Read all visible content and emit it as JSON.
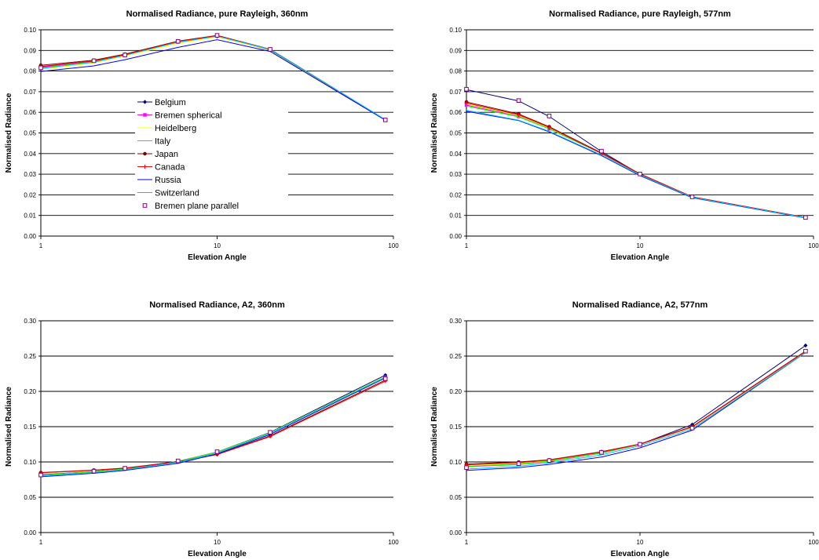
{
  "chart_data": [
    {
      "type": "line",
      "title": "Normalised Radiance, pure Rayleigh, 360nm",
      "xlabel": "Elevation Angle",
      "ylabel": "Normalised Radiance",
      "xscale": "log",
      "xlim": [
        1,
        100
      ],
      "ylim": [
        0,
        0.1
      ],
      "xticks": [
        "1",
        "10",
        "100"
      ],
      "yticks": [
        "0.00",
        "0.01",
        "0.02",
        "0.03",
        "0.04",
        "0.05",
        "0.06",
        "0.07",
        "0.08",
        "0.09",
        "0.10"
      ],
      "grid": "horizontal",
      "legend": "center-left",
      "x": [
        1,
        2,
        3,
        6,
        10,
        20,
        90
      ],
      "series": [
        {
          "name": "Belgium",
          "values": [
            0.082,
            0.0848,
            0.0878,
            0.094,
            0.0968,
            0.0902,
            0.0563
          ]
        },
        {
          "name": "Bremen spherical",
          "values": [
            0.0818,
            0.0849,
            0.088,
            0.0945,
            0.0972,
            0.0905,
            0.0564
          ]
        },
        {
          "name": "Heidelberg",
          "values": [
            0.0808,
            0.084,
            0.0873,
            0.0935,
            0.0966,
            0.0903,
            0.0563
          ]
        },
        {
          "name": "Italy",
          "values": [
            0.0815,
            0.0845,
            0.0877,
            0.0942,
            0.097,
            0.0904,
            0.0563
          ]
        },
        {
          "name": "Japan",
          "values": [
            0.0828,
            0.0853,
            0.0882,
            0.0945,
            0.0973,
            0.0906,
            0.0564
          ]
        },
        {
          "name": "Canada",
          "values": [
            0.0822,
            0.085,
            0.0879,
            0.0943,
            0.0971,
            0.0905,
            0.0564
          ]
        },
        {
          "name": "Russia",
          "values": [
            0.0798,
            0.0825,
            0.0855,
            0.0915,
            0.0952,
            0.0895,
            0.0562
          ]
        },
        {
          "name": "Switzerland",
          "values": [
            0.0812,
            0.0843,
            0.0876,
            0.094,
            0.0969,
            0.0906,
            0.0565
          ]
        },
        {
          "name": "Bremen plane parallel",
          "values": [
            0.0816,
            0.085,
            0.0878,
            0.0944,
            0.0973,
            0.0905,
            0.0563
          ]
        }
      ],
      "colors": [
        "#000080",
        "#ff00ff",
        "#ffff00",
        "#00ff00",
        "#800000",
        "#ff0000",
        "#0000ff",
        "#00c0ff",
        "#800080"
      ],
      "markers": [
        "diamond",
        "square",
        "none",
        "none",
        "circle",
        "plus",
        "none",
        "none",
        "open-square"
      ]
    },
    {
      "type": "line",
      "title": "Normalised Radiance, pure Rayleigh, 577nm",
      "xlabel": "Elevation Angle",
      "ylabel": "Normalised Radiance",
      "xscale": "log",
      "xlim": [
        1,
        100
      ],
      "ylim": [
        0,
        0.1
      ],
      "xticks": [
        "1",
        "10",
        "100"
      ],
      "yticks": [
        "0.00",
        "0.01",
        "0.02",
        "0.03",
        "0.04",
        "0.05",
        "0.06",
        "0.07",
        "0.08",
        "0.09",
        "0.10"
      ],
      "grid": "horizontal",
      "x": [
        1,
        2,
        3,
        6,
        10,
        20,
        90
      ],
      "series": [
        {
          "name": "Belgium",
          "values": [
            0.071,
            0.0655,
            0.058,
            0.041,
            0.03,
            0.019,
            0.009
          ]
        },
        {
          "name": "Bremen spherical",
          "values": [
            0.0635,
            0.058,
            0.052,
            0.04,
            0.03,
            0.019,
            0.009
          ]
        },
        {
          "name": "Heidelberg",
          "values": [
            0.064,
            0.0585,
            0.0525,
            0.0402,
            0.0301,
            0.019,
            0.009
          ]
        },
        {
          "name": "Italy",
          "values": [
            0.063,
            0.0578,
            0.052,
            0.04,
            0.03,
            0.019,
            0.009
          ]
        },
        {
          "name": "Japan",
          "values": [
            0.065,
            0.0592,
            0.053,
            0.0403,
            0.0302,
            0.019,
            0.009
          ]
        },
        {
          "name": "Canada",
          "values": [
            0.0645,
            0.0588,
            0.0527,
            0.0401,
            0.0301,
            0.019,
            0.009
          ]
        },
        {
          "name": "Russia",
          "values": [
            0.0605,
            0.056,
            0.0505,
            0.039,
            0.0293,
            0.0186,
            0.0088
          ]
        },
        {
          "name": "Switzerland",
          "values": [
            0.061,
            0.0562,
            0.0508,
            0.0393,
            0.0296,
            0.0188,
            0.0089
          ]
        },
        {
          "name": "Bremen plane parallel",
          "values": [
            0.0712,
            0.0657,
            0.0582,
            0.0412,
            0.0301,
            0.019,
            0.009
          ]
        }
      ],
      "colors": [
        "#000080",
        "#ff00ff",
        "#ffff00",
        "#00ff00",
        "#800000",
        "#ff0000",
        "#0000ff",
        "#00c0ff",
        "#800080"
      ],
      "markers": [
        "diamond",
        "square",
        "none",
        "none",
        "circle",
        "plus",
        "none",
        "none",
        "open-square"
      ]
    },
    {
      "type": "line",
      "title": "Normalised Radiance, A2, 360nm",
      "xlabel": "Elevation Angle",
      "ylabel": "Normalised Radiance",
      "xscale": "log",
      "xlim": [
        1,
        100
      ],
      "ylim": [
        0,
        0.3
      ],
      "xticks": [
        "1",
        "10",
        "100"
      ],
      "yticks": [
        "0.00",
        "0.05",
        "0.10",
        "0.15",
        "0.20",
        "0.25",
        "0.30"
      ],
      "grid": "horizontal",
      "x": [
        1,
        2,
        3,
        6,
        10,
        20,
        90
      ],
      "series": [
        {
          "name": "Belgium",
          "values": [
            0.082,
            0.0865,
            0.0905,
            0.101,
            0.114,
            0.142,
            0.223
          ]
        },
        {
          "name": "Bremen spherical",
          "values": [
            0.081,
            0.086,
            0.09,
            0.1005,
            0.1135,
            0.141,
            0.22
          ]
        },
        {
          "name": "Heidelberg",
          "values": [
            0.0815,
            0.0862,
            0.0902,
            0.1008,
            0.1138,
            0.1415,
            0.221
          ]
        },
        {
          "name": "Italy",
          "values": [
            0.0812,
            0.086,
            0.09,
            0.1005,
            0.1135,
            0.141,
            0.2205
          ]
        },
        {
          "name": "Japan",
          "values": [
            0.085,
            0.0885,
            0.0915,
            0.1005,
            0.111,
            0.137,
            0.216
          ]
        },
        {
          "name": "Canada",
          "values": [
            0.0845,
            0.088,
            0.091,
            0.1,
            0.1105,
            0.136,
            0.2145
          ]
        },
        {
          "name": "Russia",
          "values": [
            0.079,
            0.084,
            0.088,
            0.098,
            0.1115,
            0.139,
            0.219
          ]
        },
        {
          "name": "Switzerland",
          "values": [
            0.08,
            0.085,
            0.089,
            0.0995,
            0.1125,
            0.1405,
            0.22
          ]
        },
        {
          "name": "Bremen plane parallel",
          "values": [
            0.0815,
            0.087,
            0.091,
            0.1015,
            0.1145,
            0.142,
            0.218
          ]
        }
      ],
      "colors": [
        "#000080",
        "#ff00ff",
        "#ffff00",
        "#00ff00",
        "#800000",
        "#ff0000",
        "#0000ff",
        "#00c0ff",
        "#800080"
      ],
      "markers": [
        "diamond",
        "square",
        "none",
        "none",
        "circle",
        "plus",
        "none",
        "none",
        "open-square"
      ]
    },
    {
      "type": "line",
      "title": "Normalised Radiance, A2, 577nm",
      "xlabel": "Elevation Angle",
      "ylabel": "Normalised Radiance",
      "xscale": "log",
      "xlim": [
        1,
        100
      ],
      "ylim": [
        0,
        0.3
      ],
      "xticks": [
        "1",
        "10",
        "100"
      ],
      "yticks": [
        "0.00",
        "0.05",
        "0.10",
        "0.15",
        "0.20",
        "0.25",
        "0.30"
      ],
      "grid": "horizontal",
      "x": [
        1,
        2,
        3,
        6,
        10,
        20,
        90
      ],
      "series": [
        {
          "name": "Belgium",
          "values": [
            0.094,
            0.097,
            0.101,
            0.113,
            0.125,
            0.153,
            0.265
          ]
        },
        {
          "name": "Bremen spherical",
          "values": [
            0.093,
            0.0965,
            0.1005,
            0.1125,
            0.1245,
            0.15,
            0.257
          ]
        },
        {
          "name": "Heidelberg",
          "values": [
            0.0945,
            0.098,
            0.1015,
            0.113,
            0.125,
            0.149,
            0.256
          ]
        },
        {
          "name": "Italy",
          "values": [
            0.0935,
            0.097,
            0.1008,
            0.1128,
            0.1248,
            0.1495,
            0.2565
          ]
        },
        {
          "name": "Japan",
          "values": [
            0.097,
            0.1,
            0.103,
            0.1145,
            0.1255,
            0.15,
            0.257
          ]
        },
        {
          "name": "Canada",
          "values": [
            0.096,
            0.099,
            0.1025,
            0.114,
            0.1252,
            0.1495,
            0.2565
          ]
        },
        {
          "name": "Russia",
          "values": [
            0.088,
            0.092,
            0.0965,
            0.107,
            0.12,
            0.145,
            0.255
          ]
        },
        {
          "name": "Switzerland",
          "values": [
            0.09,
            0.094,
            0.0985,
            0.11,
            0.123,
            0.147,
            0.255
          ]
        },
        {
          "name": "Bremen plane parallel",
          "values": [
            0.092,
            0.0975,
            0.102,
            0.1135,
            0.125,
            0.148,
            0.257
          ]
        }
      ],
      "colors": [
        "#000080",
        "#ff00ff",
        "#ffff00",
        "#00ff00",
        "#800000",
        "#ff0000",
        "#0000ff",
        "#00c0ff",
        "#800080"
      ],
      "markers": [
        "diamond",
        "square",
        "none",
        "none",
        "circle",
        "plus",
        "none",
        "none",
        "open-square"
      ]
    }
  ]
}
